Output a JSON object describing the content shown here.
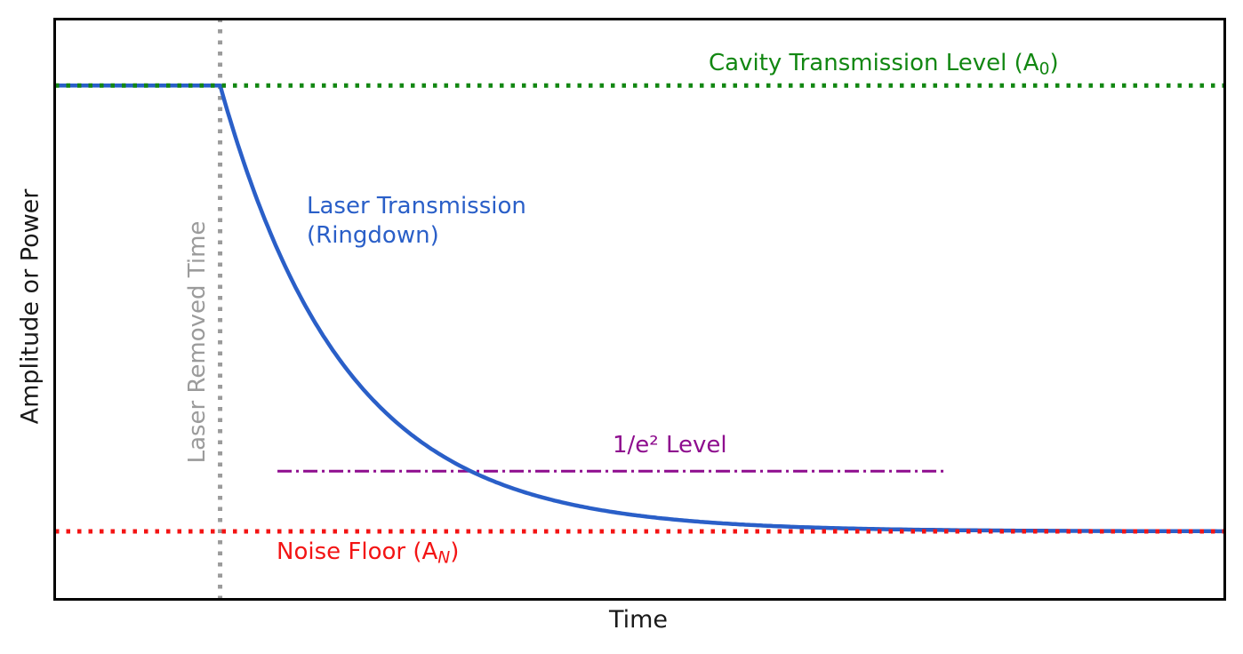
{
  "chart_data": {
    "type": "line",
    "title": "",
    "xlabel": "Time",
    "ylabel": "Amplitude or Power",
    "xlim": [
      0,
      10
    ],
    "ylim": [
      0,
      1.13
    ],
    "ticks": "none",
    "grid": false,
    "series": [
      {
        "name": "Laser Transmission (Ringdown)",
        "color": "#2a5fc8",
        "model": "flat-then-exponential-decay",
        "initial_level_A0": 1.0,
        "noise_floor_AN": 0.133,
        "laser_removed_time_t0": 1.41,
        "decay_constant_tau": 1.07
      }
    ],
    "reference_lines": [
      {
        "name": "laser-removed-time",
        "orientation": "vertical",
        "x": 1.41,
        "style": "dotted",
        "color": "#9b9b9b",
        "span": "full"
      },
      {
        "name": "one-over-e2-level",
        "orientation": "horizontal",
        "y": 0.25,
        "style": "dashdot",
        "color": "#8e0d8e",
        "span": [
          1.9,
          7.6
        ]
      },
      {
        "name": "cavity-transmission-level",
        "orientation": "horizontal",
        "y": 1.0,
        "style": "dotted",
        "color": "#128712",
        "span": "full"
      },
      {
        "name": "noise-floor",
        "orientation": "horizontal",
        "y": 0.133,
        "style": "dotted",
        "color": "#f31414",
        "span": "full"
      }
    ]
  },
  "annotations": {
    "cavity": {
      "pre": "Cavity Transmission Level (A",
      "sub": "0",
      "post": ")",
      "color": "#128712"
    },
    "ringdown": {
      "line1": "Laser Transmission",
      "line2": "(Ringdown)",
      "color": "#2a5fc8"
    },
    "e2_level": {
      "text": "1/e² Level",
      "color": "#8e0d8e"
    },
    "noise": {
      "pre": "Noise Floor (A",
      "sub": "N",
      "post": ")",
      "color": "#f31414"
    },
    "laser_removed": {
      "text": "Laser Removed Time",
      "color": "#9b9b9b"
    }
  }
}
